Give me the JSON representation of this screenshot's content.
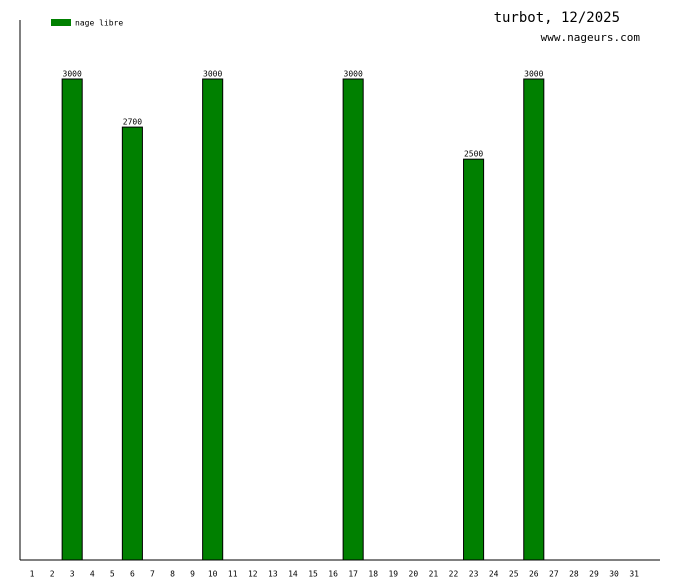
{
  "chart_data": {
    "type": "bar",
    "title": "turbot, 12/2025",
    "subtitle": "www.nageurs.com",
    "categories": [
      "1",
      "2",
      "3",
      "4",
      "5",
      "6",
      "7",
      "8",
      "9",
      "10",
      "11",
      "12",
      "13",
      "14",
      "15",
      "16",
      "17",
      "18",
      "19",
      "20",
      "21",
      "22",
      "23",
      "24",
      "25",
      "26",
      "27",
      "28",
      "29",
      "30",
      "31"
    ],
    "series": [
      {
        "name": "nage libre",
        "color": "#008000",
        "values": [
          null,
          null,
          3000,
          null,
          null,
          2700,
          null,
          null,
          null,
          3000,
          null,
          null,
          null,
          null,
          null,
          null,
          3000,
          null,
          null,
          null,
          null,
          null,
          2500,
          null,
          null,
          3000,
          null,
          null,
          null,
          null,
          null
        ]
      }
    ],
    "ylim": [
      0,
      3368
    ],
    "legend": "top-left"
  }
}
